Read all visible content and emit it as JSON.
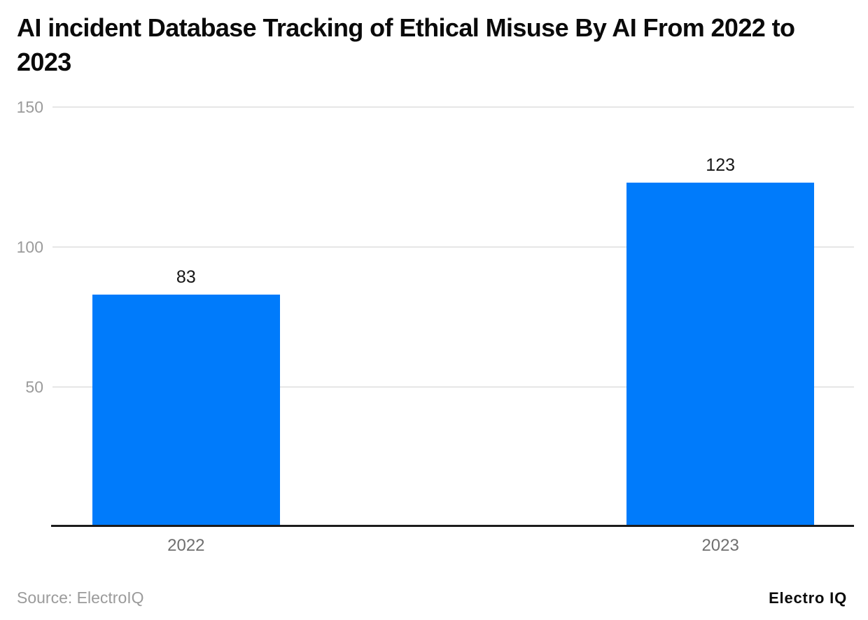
{
  "chart_data": {
    "type": "bar",
    "categories": [
      "2022",
      "2023"
    ],
    "values": [
      83,
      123
    ],
    "value_labels": [
      "83",
      "123"
    ],
    "title": "AI incident Database Tracking of Ethical Misuse By AI From 2022 to 2023",
    "xlabel": "",
    "ylabel": "",
    "ylim": [
      0,
      150
    ],
    "yticks": [
      150,
      100,
      50
    ],
    "grid": true,
    "legend": "none",
    "bar_color": "#007bfb",
    "gridline_color": "#e6e6e6",
    "axis_line_color": "#1c1c1c"
  },
  "footer": {
    "source": "Source: ElectroIQ",
    "brand": "Electro IQ"
  }
}
